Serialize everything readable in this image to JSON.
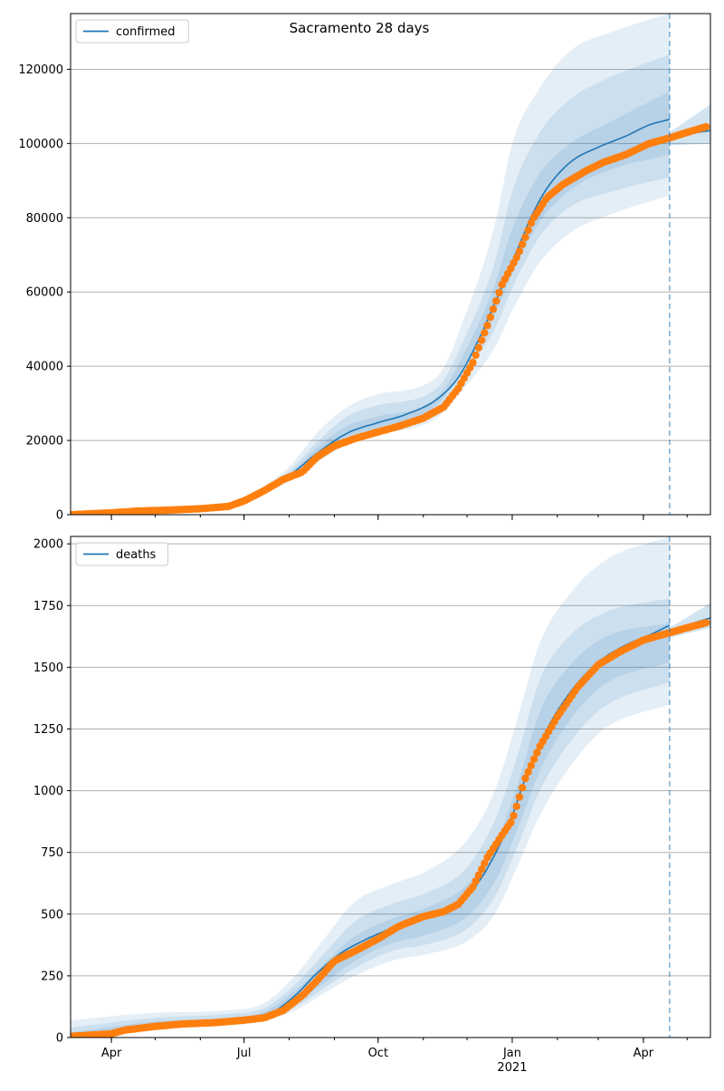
{
  "title": "Sacramento 28 days",
  "colors": {
    "model_line": "#1f77b4",
    "band": "#1f77b4",
    "observed": "#ff7f0e",
    "grid": "#b0b0b0",
    "axis": "#000000"
  },
  "x_axis": {
    "tick_labels": [
      "Apr",
      "Jul",
      "Oct",
      "Jan",
      "Apr"
    ],
    "tick_dates": [
      "2020-04-01",
      "2020-07-01",
      "2020-10-01",
      "2021-01-01",
      "2021-04-01"
    ],
    "year_label": "2021",
    "year_label_date": "2021-01-01",
    "range": [
      "2020-03-04",
      "2021-05-17"
    ],
    "forecast_start": "2021-04-19"
  },
  "chart_data": [
    {
      "type": "line",
      "legend": [
        "confirmed"
      ],
      "legend_position": "top-left",
      "grid": "horizontal",
      "ylim": [
        0,
        135000
      ],
      "yticks": [
        0,
        20000,
        40000,
        60000,
        80000,
        100000,
        120000
      ],
      "ytick_labels": [
        "0",
        "20000",
        "40000",
        "60000",
        "80000",
        "100000",
        "120000"
      ],
      "model": {
        "x": [
          "2020-03-04",
          "2020-04-15",
          "2020-06-01",
          "2020-07-01",
          "2020-07-20",
          "2020-08-01",
          "2020-08-20",
          "2020-09-10",
          "2020-10-01",
          "2020-10-20",
          "2020-11-10",
          "2020-11-25",
          "2020-12-10",
          "2020-12-20",
          "2021-01-01",
          "2021-01-15",
          "2021-01-25",
          "2021-02-10",
          "2021-03-01",
          "2021-03-20",
          "2021-04-05",
          "2021-04-19"
        ],
        "y": [
          0,
          500,
          1500,
          3900,
          7500,
          10500,
          16500,
          22000,
          24800,
          27000,
          31000,
          37000,
          48000,
          57000,
          68000,
          81000,
          88000,
          95000,
          99000,
          102000,
          105000,
          106500
        ]
      },
      "model_extension": {
        "x": [
          "2021-04-19",
          "2021-05-01",
          "2021-05-17"
        ],
        "y": [
          101000,
          102500,
          103500
        ]
      },
      "bands": [
        {
          "x": [
            "2020-03-04",
            "2020-06-01",
            "2020-07-01",
            "2020-08-01",
            "2020-08-20",
            "2020-09-10",
            "2020-10-01",
            "2020-11-10",
            "2020-12-01",
            "2020-12-20",
            "2021-01-01",
            "2021-01-20",
            "2021-02-10",
            "2021-03-10",
            "2021-04-19"
          ],
          "lower": [
            0,
            1200,
            3400,
            9000,
            14000,
            19000,
            21500,
            26000,
            35000,
            45000,
            55000,
            68000,
            76000,
            81000,
            86000
          ],
          "upper": [
            0,
            1900,
            4600,
            13000,
            22000,
            29000,
            32500,
            37000,
            55000,
            78000,
            100000,
            115000,
            125000,
            130000,
            135000
          ]
        },
        {
          "x": [
            "2020-03-04",
            "2020-06-01",
            "2020-07-01",
            "2020-08-01",
            "2020-08-20",
            "2020-09-10",
            "2020-10-01",
            "2020-11-10",
            "2020-12-01",
            "2020-12-20",
            "2021-01-01",
            "2021-01-20",
            "2021-02-10",
            "2021-03-10",
            "2021-04-19"
          ],
          "lower": [
            0,
            1300,
            3600,
            9500,
            15000,
            20000,
            22500,
            28000,
            39000,
            50000,
            61000,
            75000,
            83000,
            87000,
            91000
          ],
          "upper": [
            0,
            1750,
            4300,
            11800,
            19500,
            26500,
            29500,
            34000,
            49000,
            68000,
            87000,
            103000,
            112000,
            118000,
            124000
          ]
        },
        {
          "x": [
            "2020-03-04",
            "2020-06-01",
            "2020-07-01",
            "2020-08-01",
            "2020-08-20",
            "2020-09-10",
            "2020-10-01",
            "2020-11-10",
            "2020-12-01",
            "2020-12-20",
            "2021-01-01",
            "2021-01-20",
            "2021-02-10",
            "2021-03-10",
            "2021-04-19"
          ],
          "lower": [
            0,
            1400,
            3750,
            10000,
            16000,
            21000,
            23500,
            29500,
            41500,
            54000,
            65000,
            79000,
            87500,
            93000,
            97000
          ],
          "upper": [
            0,
            1600,
            4100,
            11000,
            18000,
            24000,
            26500,
            31500,
            45000,
            62000,
            77000,
            92000,
            100000,
            106000,
            114000
          ]
        }
      ],
      "extension_band": {
        "x": [
          "2021-04-19",
          "2021-05-17"
        ],
        "lower": [
          99500,
          100000
        ],
        "upper": [
          103000,
          110500
        ]
      },
      "observed": {
        "x": [
          "2020-03-04",
          "2020-04-01",
          "2020-04-20",
          "2020-05-15",
          "2020-06-01",
          "2020-06-20",
          "2020-07-01",
          "2020-07-15",
          "2020-07-28",
          "2020-08-10",
          "2020-08-20",
          "2020-09-01",
          "2020-09-15",
          "2020-10-01",
          "2020-10-15",
          "2020-11-01",
          "2020-11-15",
          "2020-11-25",
          "2020-12-05",
          "2020-12-15",
          "2020-12-25",
          "2021-01-05",
          "2021-01-15",
          "2021-01-25",
          "2021-02-05",
          "2021-02-20",
          "2021-03-05",
          "2021-03-20",
          "2021-04-05",
          "2021-04-19",
          "2021-05-01",
          "2021-05-14"
        ],
        "y": [
          0,
          500,
          1000,
          1300,
          1600,
          2200,
          3700,
          6500,
          9500,
          11500,
          15500,
          18500,
          20500,
          22300,
          23800,
          26000,
          29000,
          34000,
          41000,
          51000,
          62000,
          70000,
          79500,
          85500,
          89000,
          92500,
          95000,
          97000,
          100000,
          101500,
          103000,
          104500
        ]
      }
    },
    {
      "type": "line",
      "legend": [
        "deaths"
      ],
      "legend_position": "top-left",
      "grid": "horizontal",
      "ylim": [
        0,
        2030
      ],
      "yticks": [
        0,
        250,
        500,
        750,
        1000,
        1250,
        1500,
        1750,
        2000
      ],
      "ytick_labels": [
        "0",
        "250",
        "500",
        "750",
        "1000",
        "1250",
        "1500",
        "1750",
        "2000"
      ],
      "model": {
        "x": [
          "2020-03-04",
          "2020-04-01",
          "2020-05-01",
          "2020-06-01",
          "2020-07-01",
          "2020-07-20",
          "2020-08-05",
          "2020-08-20",
          "2020-09-05",
          "2020-09-20",
          "2020-10-05",
          "2020-10-20",
          "2020-11-05",
          "2020-11-20",
          "2020-12-05",
          "2020-12-20",
          "2021-01-01",
          "2021-01-10",
          "2021-01-25",
          "2021-02-10",
          "2021-03-01",
          "2021-03-20",
          "2021-04-05",
          "2021-04-19"
        ],
        "y": [
          0,
          15,
          45,
          60,
          70,
          100,
          170,
          260,
          340,
          390,
          430,
          470,
          500,
          530,
          600,
          740,
          900,
          1050,
          1250,
          1400,
          1520,
          1590,
          1630,
          1670
        ]
      },
      "model_extension": {
        "x": [
          "2021-04-19",
          "2021-05-01",
          "2021-05-17"
        ],
        "y": [
          1640,
          1670,
          1700
        ]
      },
      "bands": [
        {
          "x": [
            "2020-03-04",
            "2020-05-01",
            "2020-06-20",
            "2020-07-15",
            "2020-08-05",
            "2020-08-25",
            "2020-09-15",
            "2020-10-10",
            "2020-11-05",
            "2020-12-01",
            "2020-12-20",
            "2021-01-05",
            "2021-01-20",
            "2021-02-10",
            "2021-03-05",
            "2021-04-19"
          ],
          "lower": [
            0,
            35,
            50,
            70,
            110,
            180,
            250,
            310,
            340,
            390,
            500,
            700,
            900,
            1100,
            1250,
            1350
          ],
          "upper": [
            70,
            100,
            110,
            140,
            250,
            400,
            550,
            620,
            680,
            800,
            1000,
            1300,
            1600,
            1800,
            1930,
            2030
          ]
        },
        {
          "x": [
            "2020-03-04",
            "2020-05-01",
            "2020-06-20",
            "2020-07-15",
            "2020-08-05",
            "2020-08-25",
            "2020-09-15",
            "2020-10-10",
            "2020-11-05",
            "2020-12-01",
            "2020-12-20",
            "2021-01-05",
            "2021-01-20",
            "2021-02-10",
            "2021-03-05",
            "2021-04-19"
          ],
          "lower": [
            0,
            40,
            55,
            75,
            125,
            200,
            280,
            350,
            380,
            440,
            570,
            780,
            1000,
            1200,
            1340,
            1440
          ],
          "upper": [
            40,
            80,
            95,
            120,
            215,
            340,
            470,
            540,
            590,
            690,
            880,
            1150,
            1450,
            1630,
            1720,
            1780
          ]
        },
        {
          "x": [
            "2020-03-04",
            "2020-05-01",
            "2020-06-20",
            "2020-07-15",
            "2020-08-05",
            "2020-08-25",
            "2020-09-15",
            "2020-10-10",
            "2020-11-05",
            "2020-12-01",
            "2020-12-20",
            "2021-01-05",
            "2021-01-20",
            "2021-02-10",
            "2021-03-05",
            "2021-04-19"
          ],
          "lower": [
            0,
            45,
            60,
            80,
            140,
            220,
            310,
            380,
            420,
            490,
            630,
            850,
            1080,
            1290,
            1430,
            1520
          ],
          "upper": [
            20,
            65,
            80,
            105,
            190,
            300,
            410,
            480,
            530,
            620,
            780,
            1030,
            1320,
            1510,
            1620,
            1680
          ]
        }
      ],
      "extension_band": {
        "x": [
          "2021-04-19",
          "2021-05-17"
        ],
        "lower": [
          1620,
          1660
        ],
        "upper": [
          1660,
          1760
        ]
      },
      "observed": {
        "x": [
          "2020-03-04",
          "2020-04-01",
          "2020-04-10",
          "2020-05-01",
          "2020-05-20",
          "2020-06-10",
          "2020-07-01",
          "2020-07-15",
          "2020-07-28",
          "2020-08-10",
          "2020-08-20",
          "2020-09-01",
          "2020-09-15",
          "2020-10-01",
          "2020-10-15",
          "2020-11-01",
          "2020-11-15",
          "2020-11-25",
          "2020-12-05",
          "2020-12-15",
          "2020-12-25",
          "2021-01-01",
          "2021-01-10",
          "2021-01-20",
          "2021-02-01",
          "2021-02-15",
          "2021-03-01",
          "2021-03-15",
          "2021-04-01",
          "2021-04-19",
          "2021-05-01",
          "2021-05-14"
        ],
        "y": [
          5,
          15,
          30,
          45,
          55,
          60,
          70,
          80,
          110,
          170,
          230,
          310,
          350,
          400,
          450,
          490,
          510,
          540,
          610,
          730,
          820,
          880,
          1050,
          1180,
          1300,
          1420,
          1510,
          1560,
          1610,
          1640,
          1660,
          1680
        ]
      }
    }
  ]
}
